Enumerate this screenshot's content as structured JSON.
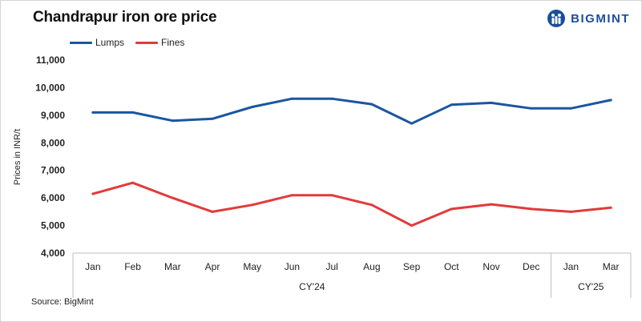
{
  "colors": {
    "lumps": "#1b56a0",
    "fines": "#e23a3a",
    "brand": "#1b4f9b"
  },
  "logo": {
    "text": "BIGMINT",
    "icon": "bigmint-logo-icon"
  },
  "chart_data": {
    "type": "line",
    "title": "Chandrapur iron ore price",
    "ylabel": "Prices in INR/t",
    "xlabel": "",
    "ylim": [
      4000,
      11000
    ],
    "yticks": [
      "4,000",
      "5,000",
      "6,000",
      "7,000",
      "8,000",
      "9,000",
      "10,000",
      "11,000"
    ],
    "ytick_values": [
      4000,
      5000,
      6000,
      7000,
      8000,
      9000,
      10000,
      11000
    ],
    "categories": [
      "Jan",
      "Feb",
      "Mar",
      "Apr",
      "May",
      "Jun",
      "Jul",
      "Aug",
      "Sep",
      "Oct",
      "Nov",
      "Dec",
      "Jan",
      "Mar"
    ],
    "groups": [
      {
        "label": "CY'24",
        "count": 12
      },
      {
        "label": "CY'25",
        "count": 2
      }
    ],
    "series": [
      {
        "name": "Lumps",
        "values": [
          9100,
          9100,
          8800,
          8870,
          9300,
          9600,
          9600,
          9400,
          8700,
          9380,
          9450,
          9250,
          9250,
          9550
        ]
      },
      {
        "name": "Fines",
        "values": [
          6150,
          6550,
          6000,
          5500,
          5750,
          6100,
          6100,
          5750,
          5000,
          5600,
          5770,
          5600,
          5500,
          5650
        ]
      }
    ],
    "grid": false,
    "legend": "top-left",
    "source": "Source: BigMint"
  }
}
